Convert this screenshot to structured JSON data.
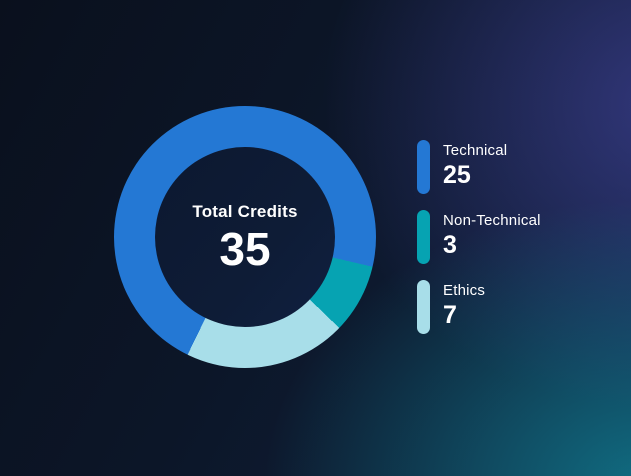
{
  "chart_data": {
    "type": "pie",
    "subtype": "donut",
    "title": "Total Credits",
    "center_label": "Total Credits",
    "center_value": "35",
    "total": 35,
    "categories": [
      "Technical",
      "Non-Technical",
      "Ethics"
    ],
    "values": [
      25,
      3,
      7
    ],
    "colors": [
      "#2478d4",
      "#06a3b2",
      "#a8dee9"
    ],
    "start_angle_deg": 206,
    "direction": "clockwise",
    "legend_position": "right",
    "background_colors": {
      "base_dark": "#0a101d",
      "teal_glow": "#1199a8",
      "purple_glow": "#5852c4",
      "hole": "#0e1c36"
    }
  }
}
